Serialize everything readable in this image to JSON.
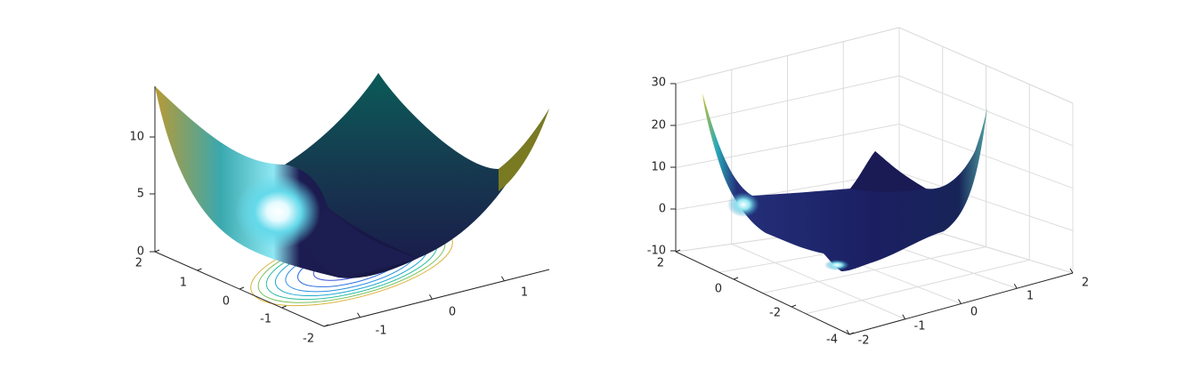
{
  "figure": {
    "background": "#ffffff"
  },
  "chart_data": [
    {
      "type": "surface",
      "surface_function": "x^2 + y^2 (paraboloid) with contour projection on z=0 plane",
      "xlim": [
        -2,
        2
      ],
      "ylim": [
        -2,
        2
      ],
      "zlim": [
        0,
        14
      ],
      "xticks": [
        -1,
        0,
        1
      ],
      "yticks": [
        -2,
        -1,
        0,
        1,
        2
      ],
      "zticks": [
        0,
        5,
        10
      ],
      "x_tick_labels": [
        "-1",
        "0",
        "1"
      ],
      "y_tick_labels": [
        "-2",
        "-1",
        "0",
        "1",
        "2"
      ],
      "z_tick_labels": [
        "0",
        "5",
        "10"
      ],
      "contour_levels": [
        1,
        2,
        3,
        4,
        5,
        6,
        7
      ],
      "grid": false,
      "box": false,
      "colormap": "parula-like with white specular highlight",
      "colors": {
        "surface_dark": "#1b1b4d",
        "surface_mid": "#0d4a4f",
        "surface_light": "#5fd6e6",
        "surface_edge": "#b8962e",
        "highlight": "#ffffff"
      }
    },
    {
      "type": "surface",
      "surface_function": "quartic saddle-like surface with raised corners",
      "xlim": [
        -2,
        2
      ],
      "ylim": [
        -4,
        2
      ],
      "zlim": [
        -10,
        30
      ],
      "xticks": [
        -1,
        0,
        1,
        2
      ],
      "yticks": [
        -4,
        -2,
        0,
        2
      ],
      "zticks": [
        -10,
        0,
        10,
        20,
        30
      ],
      "x_tick_labels": [
        "-1",
        "0",
        "1",
        "2"
      ],
      "y_tick_labels": [
        "-4",
        "-2",
        "0",
        "2"
      ],
      "x_extra_label": "-2",
      "z_tick_labels": [
        "-10",
        "0",
        "10",
        "20",
        "30"
      ],
      "grid": true,
      "box": true,
      "colormap": "parula-like dark blue with white specular highlight",
      "colors": {
        "surface_dark": "#15154a",
        "surface_mid": "#1c2a6e",
        "surface_light": "#29b6c8",
        "surface_edge": "#c8c22a",
        "highlight": "#ffffff"
      }
    }
  ]
}
